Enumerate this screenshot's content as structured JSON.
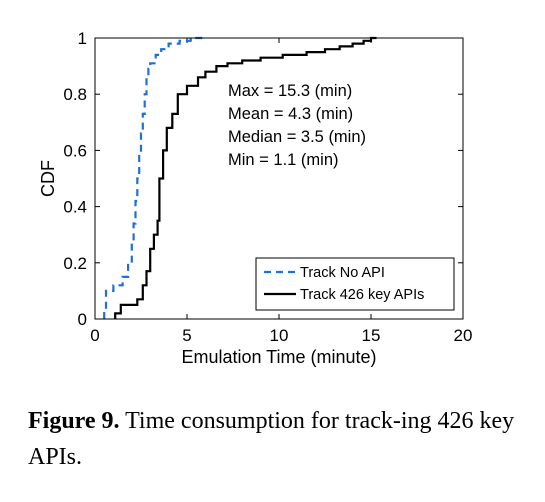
{
  "chart_data": {
    "type": "line",
    "xlabel": "Emulation Time (minute)",
    "ylabel": "CDF",
    "xlim": [
      0,
      20
    ],
    "ylim": [
      0,
      1
    ],
    "xticks": [
      0,
      5,
      10,
      15,
      20
    ],
    "yticks": [
      0,
      0.2,
      0.4,
      0.6,
      0.8,
      1
    ],
    "grid": false,
    "legend_position": "bottom-right",
    "annotations": [
      "Max = 15.3 (min)",
      "Mean = 4.3 (min)",
      "Median = 3.5 (min)",
      "Min = 1.1 (min)"
    ],
    "series": [
      {
        "name": "Track No API",
        "color": "#1f6fd6",
        "dash": "dashed",
        "x": [
          0.5,
          0.5,
          0.6,
          0.6,
          1.0,
          1.0,
          1.5,
          1.5,
          1.8,
          1.8,
          2.0,
          2.0,
          2.1,
          2.1,
          2.2,
          2.2,
          2.3,
          2.3,
          2.4,
          2.4,
          2.5,
          2.5,
          2.6,
          2.6,
          2.7,
          2.7,
          2.8,
          2.8,
          2.9,
          2.9,
          3.0,
          3.0,
          3.3,
          3.3,
          3.6,
          3.6,
          4.0,
          4.0,
          4.6,
          4.6,
          5.2,
          5.2,
          6.0,
          6.0
        ],
        "y": [
          0,
          0.03,
          0.03,
          0.1,
          0.1,
          0.12,
          0.12,
          0.15,
          0.15,
          0.2,
          0.2,
          0.27,
          0.27,
          0.34,
          0.34,
          0.42,
          0.42,
          0.5,
          0.5,
          0.58,
          0.58,
          0.66,
          0.66,
          0.73,
          0.73,
          0.8,
          0.8,
          0.86,
          0.86,
          0.89,
          0.89,
          0.91,
          0.91,
          0.94,
          0.94,
          0.96,
          0.96,
          0.98,
          0.98,
          0.99,
          0.99,
          1.0,
          1.0,
          1.0
        ]
      },
      {
        "name": "Track 426 key APIs",
        "color": "#000000",
        "dash": "solid",
        "x": [
          1.1,
          1.1,
          1.4,
          1.4,
          2.3,
          2.3,
          2.6,
          2.6,
          2.8,
          2.8,
          3.0,
          3.0,
          3.2,
          3.2,
          3.4,
          3.4,
          3.5,
          3.5,
          3.7,
          3.7,
          3.9,
          3.9,
          4.2,
          4.2,
          4.5,
          4.5,
          5.0,
          5.0,
          5.6,
          5.6,
          6.0,
          6.0,
          6.6,
          6.6,
          7.2,
          7.2,
          8.0,
          8.0,
          9.0,
          9.0,
          10.2,
          10.2,
          11.5,
          11.5,
          12.5,
          12.5,
          13.3,
          13.3,
          14.0,
          14.0,
          14.6,
          14.6,
          15.0,
          15.0,
          15.3,
          15.3
        ],
        "y": [
          0,
          0.02,
          0.02,
          0.05,
          0.05,
          0.07,
          0.07,
          0.12,
          0.12,
          0.17,
          0.17,
          0.25,
          0.25,
          0.3,
          0.3,
          0.35,
          0.35,
          0.5,
          0.5,
          0.6,
          0.6,
          0.68,
          0.68,
          0.73,
          0.73,
          0.8,
          0.8,
          0.83,
          0.83,
          0.86,
          0.86,
          0.88,
          0.88,
          0.9,
          0.9,
          0.91,
          0.91,
          0.92,
          0.92,
          0.93,
          0.93,
          0.94,
          0.94,
          0.95,
          0.95,
          0.96,
          0.96,
          0.97,
          0.97,
          0.98,
          0.98,
          0.99,
          0.99,
          1.0,
          1.0,
          1.0
        ]
      }
    ]
  },
  "caption": {
    "label": "Figure 9.",
    "text": " Time consumption for track-ing 426 key APIs."
  }
}
